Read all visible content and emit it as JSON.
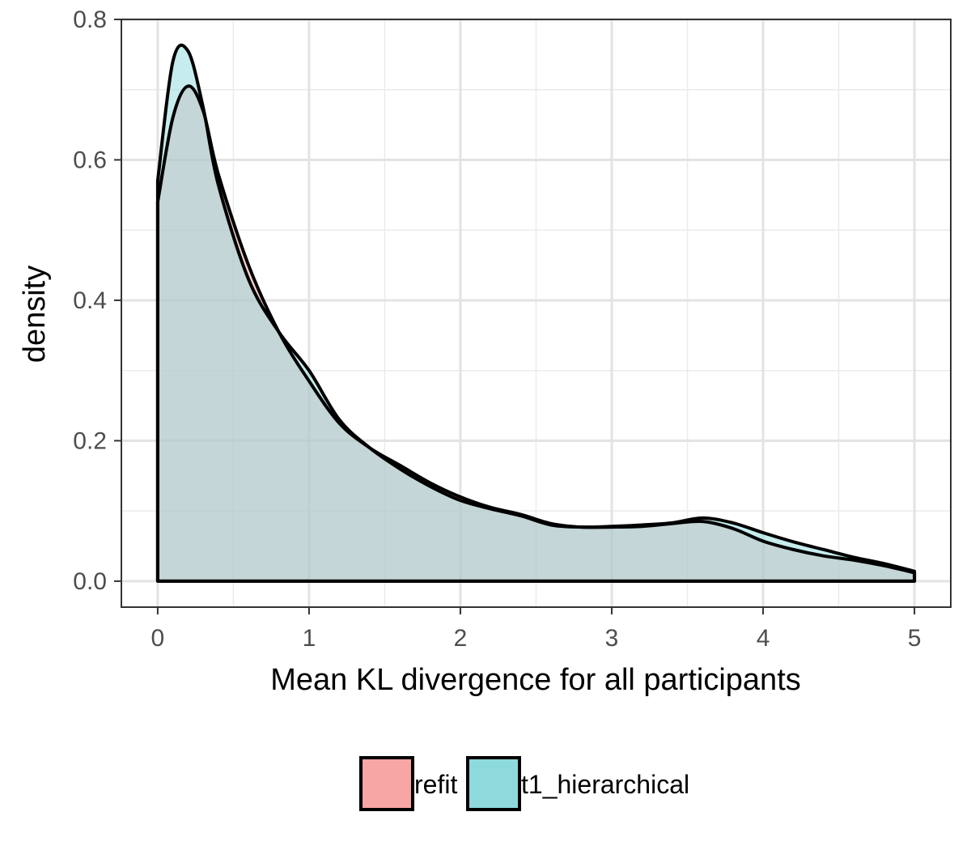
{
  "chart_data": {
    "type": "area",
    "title": "",
    "xlabel": "Mean KL divergence for all participants",
    "ylabel": "density",
    "xlim": [
      -0.24,
      5.24
    ],
    "ylim": [
      -0.037,
      0.8
    ],
    "x_ticks": [
      0,
      1,
      2,
      3,
      4,
      5
    ],
    "x_tick_labels": [
      "0",
      "1",
      "2",
      "3",
      "4",
      "5"
    ],
    "y_ticks": [
      0.0,
      0.2,
      0.4,
      0.6,
      0.8
    ],
    "y_tick_labels": [
      "0.0",
      "0.2",
      "0.4",
      "0.6",
      "0.8"
    ],
    "grid": true,
    "legend_position": "bottom",
    "series": [
      {
        "name": "refit",
        "color": "#F8A5A5",
        "x": [
          0,
          0.1,
          0.2,
          0.3,
          0.4,
          0.6,
          0.8,
          1.0,
          1.2,
          1.4,
          1.6,
          1.8,
          2.0,
          2.2,
          2.4,
          2.6,
          2.8,
          3.0,
          3.2,
          3.4,
          3.6,
          3.8,
          4.0,
          4.2,
          4.4,
          4.6,
          4.8,
          5.0
        ],
        "y": [
          0.54,
          0.66,
          0.705,
          0.67,
          0.58,
          0.45,
          0.355,
          0.285,
          0.225,
          0.19,
          0.165,
          0.14,
          0.12,
          0.105,
          0.095,
          0.082,
          0.077,
          0.077,
          0.078,
          0.082,
          0.085,
          0.075,
          0.057,
          0.045,
          0.036,
          0.03,
          0.022,
          0.012
        ]
      },
      {
        "name": "t1_hierarchical",
        "color": "#8DD9DC",
        "x": [
          0,
          0.1,
          0.2,
          0.3,
          0.4,
          0.6,
          0.8,
          1.0,
          1.2,
          1.4,
          1.6,
          1.8,
          2.0,
          2.2,
          2.4,
          2.6,
          2.8,
          3.0,
          3.2,
          3.4,
          3.6,
          3.8,
          4.0,
          4.2,
          4.4,
          4.6,
          4.8,
          5.0
        ],
        "y": [
          0.57,
          0.74,
          0.755,
          0.675,
          0.565,
          0.43,
          0.355,
          0.3,
          0.23,
          0.19,
          0.16,
          0.135,
          0.115,
          0.103,
          0.093,
          0.08,
          0.077,
          0.078,
          0.08,
          0.083,
          0.09,
          0.083,
          0.069,
          0.056,
          0.045,
          0.034,
          0.025,
          0.014
        ]
      }
    ]
  }
}
